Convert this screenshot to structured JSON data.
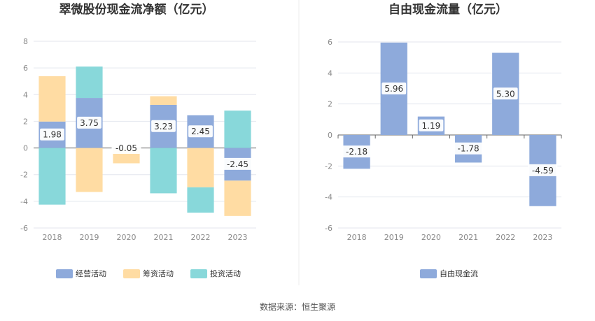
{
  "source": "数据来源：恒生聚源",
  "chart_data": [
    {
      "type": "bar",
      "stacked": true,
      "title": "翠微股份现金流净额（亿元）",
      "categories": [
        "2018",
        "2019",
        "2020",
        "2021",
        "2022",
        "2023"
      ],
      "ylim": [
        -6,
        8
      ],
      "yticks": [
        -6,
        -4,
        -2,
        0,
        2,
        4,
        6,
        8
      ],
      "grid": true,
      "legend_position": "bottom",
      "series": [
        {
          "name": "经营活动",
          "color": "#8eaadb",
          "values": [
            1.98,
            3.75,
            -0.05,
            3.23,
            2.45,
            -2.45
          ]
        },
        {
          "name": "筹资活动",
          "color": "#ffdca3",
          "values": [
            3.4,
            -3.3,
            -1.1,
            0.65,
            -2.95,
            -2.65
          ]
        },
        {
          "name": "投资活动",
          "color": "#88d8da",
          "values": [
            -4.25,
            2.35,
            0,
            -3.4,
            -1.9,
            2.8
          ]
        }
      ],
      "data_labels": [
        "1.98",
        "3.75",
        "-0.05",
        "3.23",
        "2.45",
        "-2.45"
      ]
    },
    {
      "type": "bar",
      "title": "自由现金流量（亿元）",
      "categories": [
        "2018",
        "2019",
        "2020",
        "2021",
        "2022",
        "2023"
      ],
      "ylim": [
        -6,
        6
      ],
      "yticks": [
        -6,
        -4,
        -2,
        0,
        2,
        4,
        6
      ],
      "grid": true,
      "legend_position": "bottom",
      "series": [
        {
          "name": "自由现金流",
          "color": "#8eaadb",
          "values": [
            -2.18,
            5.96,
            1.19,
            -1.78,
            5.3,
            -4.59
          ]
        }
      ],
      "data_labels": [
        "-2.18",
        "5.96",
        "1.19",
        "-1.78",
        "5.30",
        "-4.59"
      ]
    }
  ]
}
